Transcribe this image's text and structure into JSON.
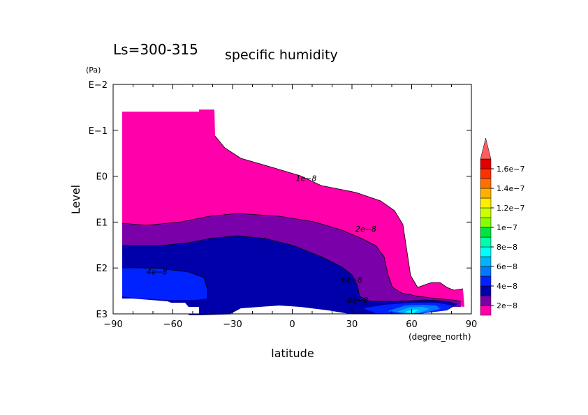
{
  "chart_data": {
    "type": "contour",
    "title_prefix": "Ls=300-315",
    "title_main": "specific humidity",
    "xlabel": "latitude",
    "x_units": "(degree_north)",
    "ylabel": "Level",
    "y_units": "(Pa)",
    "y_scale": "log",
    "xlim": [
      -90,
      90
    ],
    "ylim": [
      0.01,
      1000
    ],
    "x_ticks": [
      {
        "value": -90,
        "label": "−90"
      },
      {
        "value": -60,
        "label": "−60"
      },
      {
        "value": -30,
        "label": "−30"
      },
      {
        "value": 0,
        "label": "0"
      },
      {
        "value": 30,
        "label": "30"
      },
      {
        "value": 60,
        "label": "60"
      },
      {
        "value": 90,
        "label": "90"
      }
    ],
    "y_ticks": [
      {
        "value": 0.01,
        "label": "E−2"
      },
      {
        "value": 0.1,
        "label": "E−1"
      },
      {
        "value": 1,
        "label": "E0"
      },
      {
        "value": 10,
        "label": "E1"
      },
      {
        "value": 100,
        "label": "E2"
      },
      {
        "value": 1000,
        "label": "E3"
      }
    ],
    "contour_labels": [
      {
        "text": "1e−8",
        "lat": 7,
        "p": 1.1
      },
      {
        "text": "2e−8",
        "lat": 37,
        "p": 14
      },
      {
        "text": "4e−8",
        "lat": -68,
        "p": 120
      },
      {
        "text": "6e−8",
        "lat": 30,
        "p": 180
      },
      {
        "text": "8e−8",
        "lat": 33,
        "p": 500
      }
    ],
    "colorbar": {
      "levels": [
        {
          "color": "#ff00aa",
          "label": "2e−8"
        },
        {
          "color": "#7a00aa",
          "label": ""
        },
        {
          "color": "#0000aa",
          "label": "4e−8"
        },
        {
          "color": "#0022ff",
          "label": ""
        },
        {
          "color": "#0078ff",
          "label": "6e−8"
        },
        {
          "color": "#00b4ff",
          "label": ""
        },
        {
          "color": "#00ffff",
          "label": "8e−8"
        },
        {
          "color": "#00ffaa",
          "label": ""
        },
        {
          "color": "#00e640",
          "label": "1e−7"
        },
        {
          "color": "#88ff00",
          "label": ""
        },
        {
          "color": "#ccff00",
          "label": "1.2e−7"
        },
        {
          "color": "#ffee00",
          "label": ""
        },
        {
          "color": "#ffb000",
          "label": "1.4e−7"
        },
        {
          "color": "#ff7000",
          "label": ""
        },
        {
          "color": "#ff3000",
          "label": "1.6e−7"
        },
        {
          "color": "#e00000",
          "label": ""
        }
      ],
      "overflow_color": "#ff5c5c"
    }
  }
}
